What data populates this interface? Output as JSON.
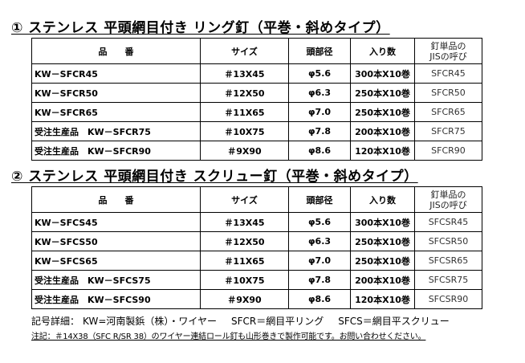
{
  "sections": [
    {
      "title": "① ステンレス 平頭網目付き リング釘（平巻・斜めタイプ）",
      "headers": [
        "品　　番",
        "サイズ",
        "頭部径",
        "入り数",
        "釘単品の\nJISの呼び"
      ],
      "rows": [
        [
          "KW－SFCR45",
          "＃13X45",
          "φ5.6",
          "300本X10巻",
          "SFCR45"
        ],
        [
          "KW－SFCR50",
          "＃12X50",
          "φ6.3",
          "250本X10巻",
          "SFCR50"
        ],
        [
          "KW－SFCR65",
          "＃11X65",
          "φ7.0",
          "250本X10巻",
          "SFCR65"
        ],
        [
          "受注生産品　KW－SFCR75",
          "＃10X75",
          "φ7.8",
          "200本X10巻",
          "SFCR75"
        ],
        [
          "受注生産品　KW－SFCR90",
          "＃9X90",
          "φ8.6",
          "120本X10巻",
          "SFCR90"
        ]
      ]
    },
    {
      "title": "② ステンレス 平頭網目付き スクリュー釘（平巻・斜めタイプ）",
      "headers": [
        "品　　番",
        "サイズ",
        "頭部径",
        "入り数",
        "釘単品の\nJISの呼び"
      ],
      "rows": [
        [
          "KW－SFCS45",
          "＃13X45",
          "φ5.6",
          "300本X10巻",
          "SFCSR45"
        ],
        [
          "KW－SFCS50",
          "＃12X50",
          "φ6.3",
          "250本X10巻",
          "SFCSR50"
        ],
        [
          "KW－SFCS65",
          "＃11X65",
          "φ7.0",
          "250本X10巻",
          "SFCSR65"
        ],
        [
          "受注生産品　KW－SFCS75",
          "＃10X75",
          "φ7.8",
          "200本X10巻",
          "SFCSR75"
        ],
        [
          "受注生産品　KW－SFCS90",
          "＃9X90",
          "φ8.6",
          "120本X10巻",
          "SFCSR90"
        ]
      ]
    }
  ],
  "legend": {
    "prefix": "記号詳細：",
    "kw": "KW=河南製鋲（株）・ワイヤー",
    "sfcr": "SFCR＝網目平リング",
    "sfcs": "SFCS＝網目平スクリュー"
  },
  "note": "注記：＃14X38（SFC R/SR 38）のワイヤー連結ロール釘も山形巻きで製作可能です。お問い合わせください。"
}
